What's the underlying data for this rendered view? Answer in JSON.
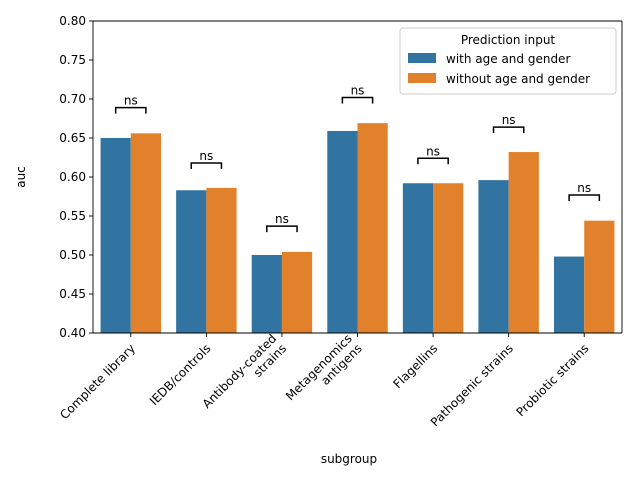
{
  "chart_data": {
    "type": "bar",
    "xlabel": "subgroup",
    "ylabel": "auc",
    "ylim": [
      0.4,
      0.8
    ],
    "yticks": [
      "0.40",
      "0.45",
      "0.50",
      "0.55",
      "0.60",
      "0.65",
      "0.70",
      "0.75",
      "0.80"
    ],
    "grid": false,
    "categories": [
      [
        "Complete library"
      ],
      [
        "IEDB/controls"
      ],
      [
        "Antibody-coated",
        "strains"
      ],
      [
        "Metagenomics",
        "antigens"
      ],
      [
        "Flagellins"
      ],
      [
        "Pathogenic strains"
      ],
      [
        "Probiotic strains"
      ]
    ],
    "series": [
      {
        "name": "with age and gender",
        "color": "#3274a1",
        "values": [
          0.65,
          0.583,
          0.5,
          0.659,
          0.592,
          0.596,
          0.498
        ]
      },
      {
        "name": "without age and gender",
        "color": "#e1812c",
        "values": [
          0.656,
          0.586,
          0.504,
          0.669,
          0.592,
          0.632,
          0.544
        ]
      }
    ],
    "annotations": [
      "ns",
      "ns",
      "ns",
      "ns",
      "ns",
      "ns",
      "ns"
    ],
    "annotation_levels": [
      0.689,
      0.618,
      0.537,
      0.702,
      0.624,
      0.664,
      0.577
    ],
    "legend": {
      "title": "Prediction input",
      "placement": "top-right"
    }
  }
}
